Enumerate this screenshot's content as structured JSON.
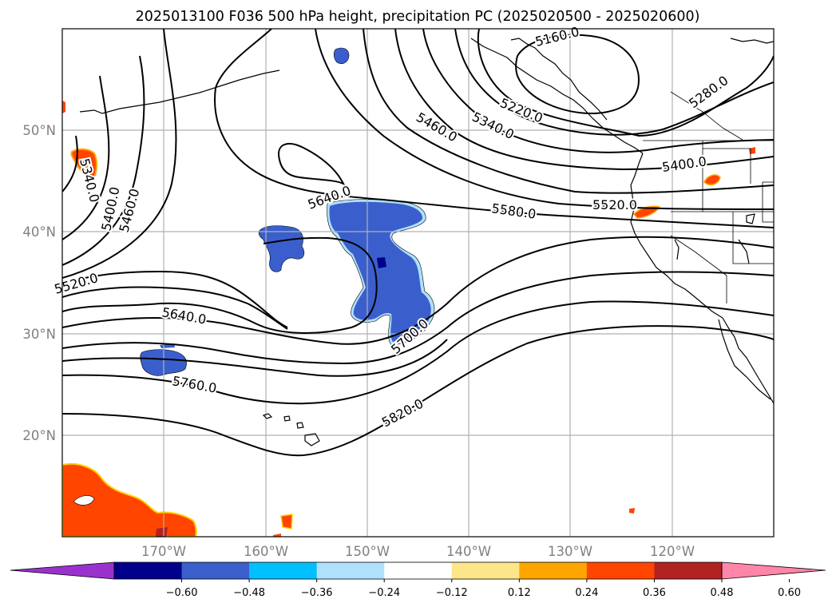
{
  "title": "2025013100 F036 500 hPa height, precipitation PC (2025020500 - 2025020600)",
  "map": {
    "projection": "PlateCarree",
    "extent_lon": [
      -180,
      -110
    ],
    "extent_lat": [
      10,
      60
    ],
    "lat_labels": [
      "20°N",
      "30°N",
      "40°N",
      "50°N"
    ],
    "lon_labels": [
      "170°W",
      "160°W",
      "150°W",
      "140°W",
      "130°W",
      "120°W"
    ],
    "contour_labels": [
      "5160.0",
      "5220.0",
      "5280.0",
      "5340.0",
      "5340.0",
      "5400.0",
      "5400.0",
      "5460.0",
      "5460.0",
      "5520.0",
      "5520.0",
      "5580.0",
      "5640.0",
      "5640.0",
      "5700.0",
      "5760.0",
      "5820.0"
    ]
  },
  "colorbar": {
    "ticks": [
      "−0.60",
      "−0.48",
      "−0.36",
      "−0.24",
      "−0.12",
      "0.12",
      "0.24",
      "0.36",
      "0.48",
      "0.60"
    ],
    "colors": [
      "#9932cc",
      "#00008b",
      "#3a5fcd",
      "#00bfff",
      "#afe1fa",
      "#ffffff",
      "#fde68a",
      "#ffa500",
      "#ff4500",
      "#b22222",
      "#ff86a8"
    ]
  },
  "colors": {
    "neg_strong": "#3a5fcd",
    "neg_mid": "#00bfff",
    "neg_light": "#afe1fa",
    "neg_max": "#00008b",
    "pos_light": "#fde68a",
    "pos_mid": "#ffa500",
    "pos_strong": "#ff4500",
    "pos_max": "#b22222"
  }
}
